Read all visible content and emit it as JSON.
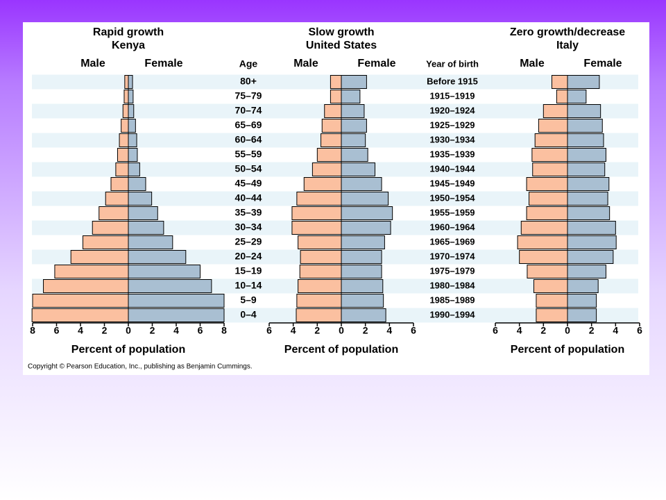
{
  "slide": {
    "age_label": "Age",
    "ages": [
      "80+",
      "75–79",
      "70–74",
      "65–69",
      "60–64",
      "55–59",
      "50–54",
      "45–49",
      "40–44",
      "35–39",
      "30–34",
      "25–29",
      "20–24",
      "15–19",
      "10–14",
      "5–9",
      "0–4"
    ],
    "birth_label": "Year of birth",
    "births": [
      "Before 1915",
      "1915–1919",
      "1920–1924",
      "1925–1929",
      "1930–1934",
      "1935–1939",
      "1940–1944",
      "1945–1949",
      "1950–1954",
      "1955–1959",
      "1960–1964",
      "1965–1969",
      "1970–1974",
      "1975–1979",
      "1980–1984",
      "1985–1989",
      "1990–1994"
    ],
    "copyright": "Copyright © Pearson Education, Inc., publishing as Benjamin Cummings."
  },
  "chart_data": [
    {
      "type": "pyramid",
      "title": "Rapid growth",
      "subtitle": "Kenya",
      "xlabel": "Percent of population",
      "xlim": [
        0,
        8
      ],
      "xticks": [
        0,
        2,
        4,
        6,
        8
      ],
      "series": [
        {
          "name": "Male",
          "color": "#fbc0a0",
          "values": [
            0.3,
            0.35,
            0.45,
            0.6,
            0.75,
            0.9,
            1.05,
            1.45,
            1.9,
            2.45,
            3.0,
            3.8,
            4.8,
            6.15,
            7.1,
            8.0,
            8.05
          ]
        },
        {
          "name": "Female",
          "color": "#a9bfd2",
          "values": [
            0.35,
            0.4,
            0.45,
            0.6,
            0.7,
            0.75,
            0.95,
            1.45,
            1.95,
            2.45,
            2.95,
            3.7,
            4.8,
            6.0,
            6.95,
            8.0,
            8.0
          ]
        }
      ]
    },
    {
      "type": "pyramid",
      "title": "Slow growth",
      "subtitle": "United States",
      "xlabel": "Percent of population",
      "xlim": [
        0,
        6
      ],
      "xticks": [
        0,
        2,
        4,
        6
      ],
      "series": [
        {
          "name": "Male",
          "color": "#fbc0a0",
          "values": [
            0.9,
            0.9,
            1.4,
            1.6,
            1.7,
            2.0,
            2.4,
            3.1,
            3.7,
            4.1,
            4.1,
            3.6,
            3.4,
            3.45,
            3.6,
            3.7,
            3.75
          ]
        },
        {
          "name": "Female",
          "color": "#a9bfd2",
          "values": [
            2.1,
            1.55,
            1.9,
            2.1,
            2.0,
            2.2,
            2.8,
            3.35,
            3.9,
            4.25,
            4.1,
            3.6,
            3.35,
            3.35,
            3.45,
            3.5,
            3.7
          ]
        }
      ]
    },
    {
      "type": "pyramid",
      "title": "Zero growth/decrease",
      "subtitle": "Italy",
      "xlabel": "Percent of population",
      "xlim": [
        0,
        6
      ],
      "xticks": [
        0,
        2,
        4,
        6
      ],
      "series": [
        {
          "name": "Male",
          "color": "#fbc0a0",
          "values": [
            1.3,
            0.9,
            2.0,
            2.4,
            2.7,
            2.95,
            2.9,
            3.4,
            3.2,
            3.4,
            3.85,
            4.15,
            4.0,
            3.35,
            2.8,
            2.6,
            2.6
          ]
        },
        {
          "name": "Female",
          "color": "#a9bfd2",
          "values": [
            2.65,
            1.55,
            2.75,
            2.9,
            3.0,
            3.2,
            3.1,
            3.45,
            3.35,
            3.5,
            4.0,
            4.05,
            3.8,
            3.2,
            2.55,
            2.4,
            2.4
          ]
        }
      ]
    }
  ]
}
